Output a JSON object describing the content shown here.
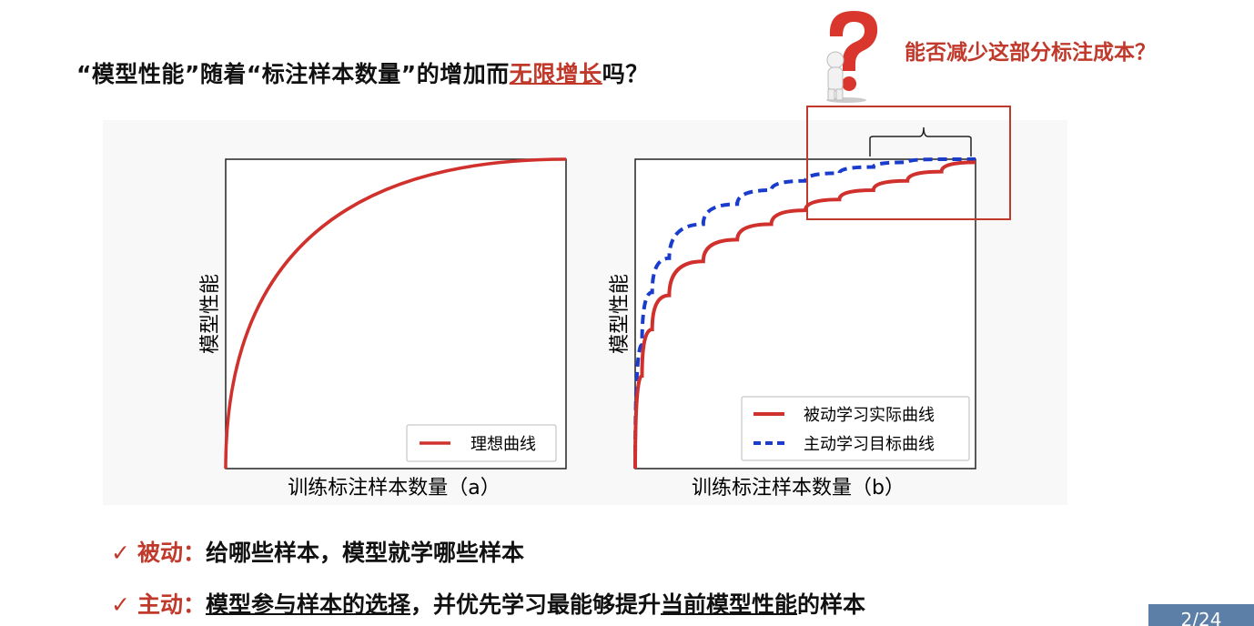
{
  "title": {
    "prefix": "“模型性能”随着“标注样本数量”的增加而",
    "accent": "无限增长",
    "suffix": "吗？"
  },
  "callout": {
    "text": "能否减少这部分标注成本？",
    "icon": "question-figure-icon"
  },
  "chart_data": [
    {
      "type": "line",
      "xlabel": "训练标注样本数量（a）",
      "ylabel": "模型性能",
      "legend_placement": "bottom-right",
      "series": [
        {
          "name": "理想曲线",
          "style": "solid",
          "color": "#d0312d",
          "x": [
            0,
            1
          ],
          "y": [
            0,
            1
          ]
        }
      ],
      "xlim": [
        0,
        1
      ],
      "ylim": [
        0,
        1
      ]
    },
    {
      "type": "line",
      "xlabel": "训练标注样本数量（b）",
      "ylabel": "模型性能",
      "legend_placement": "bottom-right",
      "series": [
        {
          "name": "被动学习实际曲线",
          "style": "solid",
          "color": "#d0312d",
          "x": [
            0,
            0.02,
            0.05,
            0.1,
            0.2,
            0.3,
            0.4,
            0.5,
            0.6,
            0.7,
            0.8,
            0.9,
            1.0
          ],
          "y": [
            0.0,
            0.3,
            0.45,
            0.56,
            0.67,
            0.74,
            0.79,
            0.835,
            0.87,
            0.9,
            0.93,
            0.96,
            0.99
          ]
        },
        {
          "name": "主动学习目标曲线",
          "style": "dashed",
          "color": "#1a3ccc",
          "x": [
            0,
            0.02,
            0.05,
            0.1,
            0.2,
            0.3,
            0.4,
            0.5,
            0.6,
            0.7,
            0.8,
            0.9,
            1.0
          ],
          "y": [
            0.0,
            0.4,
            0.57,
            0.68,
            0.79,
            0.855,
            0.9,
            0.93,
            0.955,
            0.975,
            0.99,
            1.0,
            1.0
          ]
        }
      ],
      "xlim": [
        0,
        1
      ],
      "ylim": [
        0,
        1
      ],
      "annotation": "highlight box with brace over saturated top-right region"
    }
  ],
  "bullets": [
    {
      "check": "✓",
      "keyword": "被动：",
      "text": "给哪些样本，模型就学哪些样本"
    },
    {
      "check": "✓",
      "keyword": "主动：",
      "text_ul": "模型参与样本的选择",
      "text_mid": "，并优先学习最能够提升",
      "text_ul2": "当前模型性能",
      "text_end": "的样本"
    }
  ],
  "page_number": "2/24",
  "colors": {
    "accent": "#c0392b",
    "curve_red": "#d0312d",
    "curve_blue": "#1a3ccc",
    "page_tab": "#5b7fa6"
  }
}
